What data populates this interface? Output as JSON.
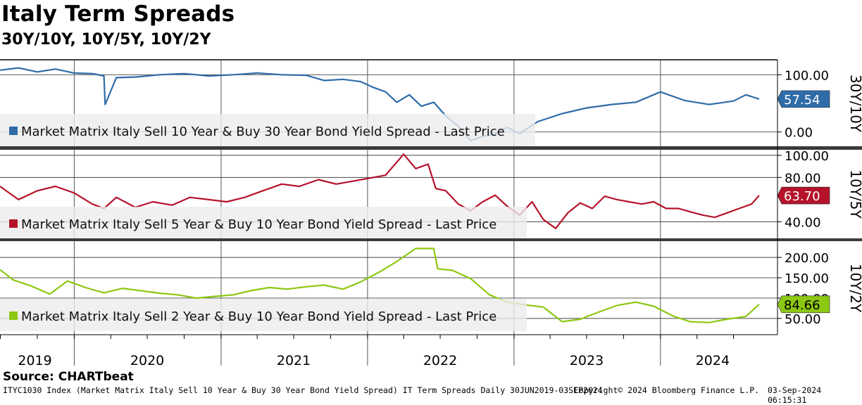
{
  "header": {
    "title": "Italy Term Spreads",
    "subtitle": "30Y/10Y, 10Y/5Y, 10Y/2Y"
  },
  "footer": {
    "source": "Source: CHARTbeat",
    "info": "ITYC1030 Index (Market Matrix Italy Sell 10 Year & Buy 30 Year Bond Yield Spread) IT Term Spreads  Daily 30JUN2019-03SEP2024",
    "copyright": "Copyright© 2024 Bloomberg Finance L.P.",
    "timestamp": "03-Sep-2024 06:15:31"
  },
  "x_axis": {
    "labels": [
      "2019",
      "2020",
      "2021",
      "2022",
      "2023",
      "2024"
    ],
    "range": [
      "2019-06-30",
      "2024-09-03"
    ]
  },
  "chart_data": [
    {
      "type": "line",
      "panel_label": "30Y/10Y",
      "legend": "Market Matrix Italy Sell 10 Year & Buy 30 Year Bond Yield Spread - Last Price",
      "color": "#2f6ca8",
      "last_value_label": "57.54",
      "ylim": [
        -25,
        125
      ],
      "yticks": [
        "100.00",
        "0.00"
      ],
      "ytick_values": [
        100,
        0
      ],
      "x": [
        "2019-06-30",
        "2019-08-15",
        "2019-10-01",
        "2019-11-15",
        "2020-01-01",
        "2020-02-15",
        "2020-03-15",
        "2020-03-18",
        "2020-04-15",
        "2020-06-01",
        "2020-08-01",
        "2020-10-01",
        "2020-12-01",
        "2021-02-01",
        "2021-04-01",
        "2021-06-01",
        "2021-08-01",
        "2021-09-15",
        "2021-11-01",
        "2021-12-15",
        "2022-01-15",
        "2022-02-15",
        "2022-03-15",
        "2022-04-15",
        "2022-05-15",
        "2022-06-15",
        "2022-07-15",
        "2022-08-15",
        "2022-09-15",
        "2022-10-15",
        "2022-11-15",
        "2022-12-15",
        "2023-01-15",
        "2023-03-01",
        "2023-05-01",
        "2023-07-01",
        "2023-09-01",
        "2023-11-01",
        "2024-01-01",
        "2024-03-01",
        "2024-05-01",
        "2024-07-01",
        "2024-08-01",
        "2024-09-03"
      ],
      "values": [
        108,
        112,
        105,
        110,
        103,
        102,
        98,
        48,
        95,
        96,
        100,
        102,
        98,
        100,
        103,
        100,
        99,
        90,
        92,
        88,
        78,
        70,
        52,
        65,
        45,
        52,
        28,
        10,
        -15,
        -8,
        -3,
        8,
        -3,
        18,
        32,
        42,
        48,
        52,
        70,
        55,
        48,
        54,
        65,
        57.54
      ]
    },
    {
      "type": "line",
      "panel_label": "10Y/5Y",
      "legend": "Market Matrix Italy Sell 5 Year & Buy 10 Year Bond Yield Spread - Last Price",
      "color": "#b5132b",
      "last_value_label": "63.70",
      "ylim": [
        25,
        105
      ],
      "yticks": [
        "100.00",
        "80.00",
        "40.00"
      ],
      "ytick_values": [
        100,
        80,
        40
      ],
      "x": [
        "2019-06-30",
        "2019-08-15",
        "2019-10-01",
        "2019-11-15",
        "2020-01-01",
        "2020-02-15",
        "2020-03-15",
        "2020-04-15",
        "2020-06-01",
        "2020-07-15",
        "2020-09-01",
        "2020-10-15",
        "2020-12-01",
        "2021-01-15",
        "2021-03-01",
        "2021-04-15",
        "2021-06-01",
        "2021-07-15",
        "2021-09-01",
        "2021-10-15",
        "2021-12-01",
        "2022-01-15",
        "2022-02-15",
        "2022-03-01",
        "2022-04-01",
        "2022-05-01",
        "2022-06-01",
        "2022-06-20",
        "2022-07-15",
        "2022-08-15",
        "2022-09-15",
        "2022-10-15",
        "2022-11-15",
        "2022-12-15",
        "2023-01-15",
        "2023-02-15",
        "2023-03-15",
        "2023-04-15",
        "2023-05-15",
        "2023-06-15",
        "2023-07-15",
        "2023-08-15",
        "2023-09-15",
        "2023-10-15",
        "2023-11-15",
        "2023-12-15",
        "2024-01-15",
        "2024-02-15",
        "2024-03-15",
        "2024-04-15",
        "2024-05-15",
        "2024-06-15",
        "2024-07-15",
        "2024-08-15",
        "2024-09-03"
      ],
      "values": [
        72,
        60,
        68,
        72,
        66,
        56,
        52,
        62,
        53,
        58,
        55,
        62,
        60,
        58,
        62,
        68,
        74,
        72,
        78,
        74,
        77,
        80,
        82,
        88,
        101,
        88,
        92,
        70,
        68,
        56,
        50,
        58,
        64,
        54,
        46,
        58,
        42,
        34,
        48,
        57,
        52,
        63,
        60,
        58,
        56,
        58,
        52,
        52,
        49,
        46,
        44,
        48,
        52,
        56,
        63.7
      ]
    },
    {
      "type": "line",
      "panel_label": "10Y/2Y",
      "legend": "Market Matrix Italy Sell 2 Year & Buy 10 Year Bond Yield Spread - Last Price",
      "color": "#8dc812",
      "last_value_label": "84.66",
      "ylim": [
        10,
        240
      ],
      "yticks": [
        "200.00",
        "150.00",
        "100.00",
        "50.00"
      ],
      "ytick_values": [
        200,
        150,
        100,
        50
      ],
      "x": [
        "2019-06-30",
        "2019-08-01",
        "2019-09-15",
        "2019-11-01",
        "2019-12-15",
        "2020-02-01",
        "2020-03-15",
        "2020-05-01",
        "2020-06-15",
        "2020-08-01",
        "2020-09-15",
        "2020-11-01",
        "2020-12-15",
        "2021-02-01",
        "2021-03-15",
        "2021-05-01",
        "2021-06-15",
        "2021-08-01",
        "2021-09-15",
        "2021-11-01",
        "2021-12-15",
        "2022-02-01",
        "2022-03-15",
        "2022-05-01",
        "2022-06-15",
        "2022-06-25",
        "2022-08-01",
        "2022-09-15",
        "2022-11-01",
        "2022-12-15",
        "2023-02-01",
        "2023-03-15",
        "2023-05-01",
        "2023-06-15",
        "2023-08-01",
        "2023-09-15",
        "2023-11-01",
        "2023-12-15",
        "2024-02-01",
        "2024-03-15",
        "2024-05-01",
        "2024-06-15",
        "2024-08-01",
        "2024-09-03"
      ],
      "values": [
        170,
        145,
        130,
        110,
        142,
        125,
        113,
        124,
        118,
        112,
        108,
        100,
        104,
        108,
        118,
        126,
        122,
        128,
        132,
        122,
        140,
        165,
        190,
        222,
        222,
        172,
        168,
        148,
        108,
        90,
        83,
        78,
        42,
        48,
        66,
        82,
        90,
        80,
        56,
        42,
        40,
        48,
        55,
        84.66
      ]
    }
  ]
}
